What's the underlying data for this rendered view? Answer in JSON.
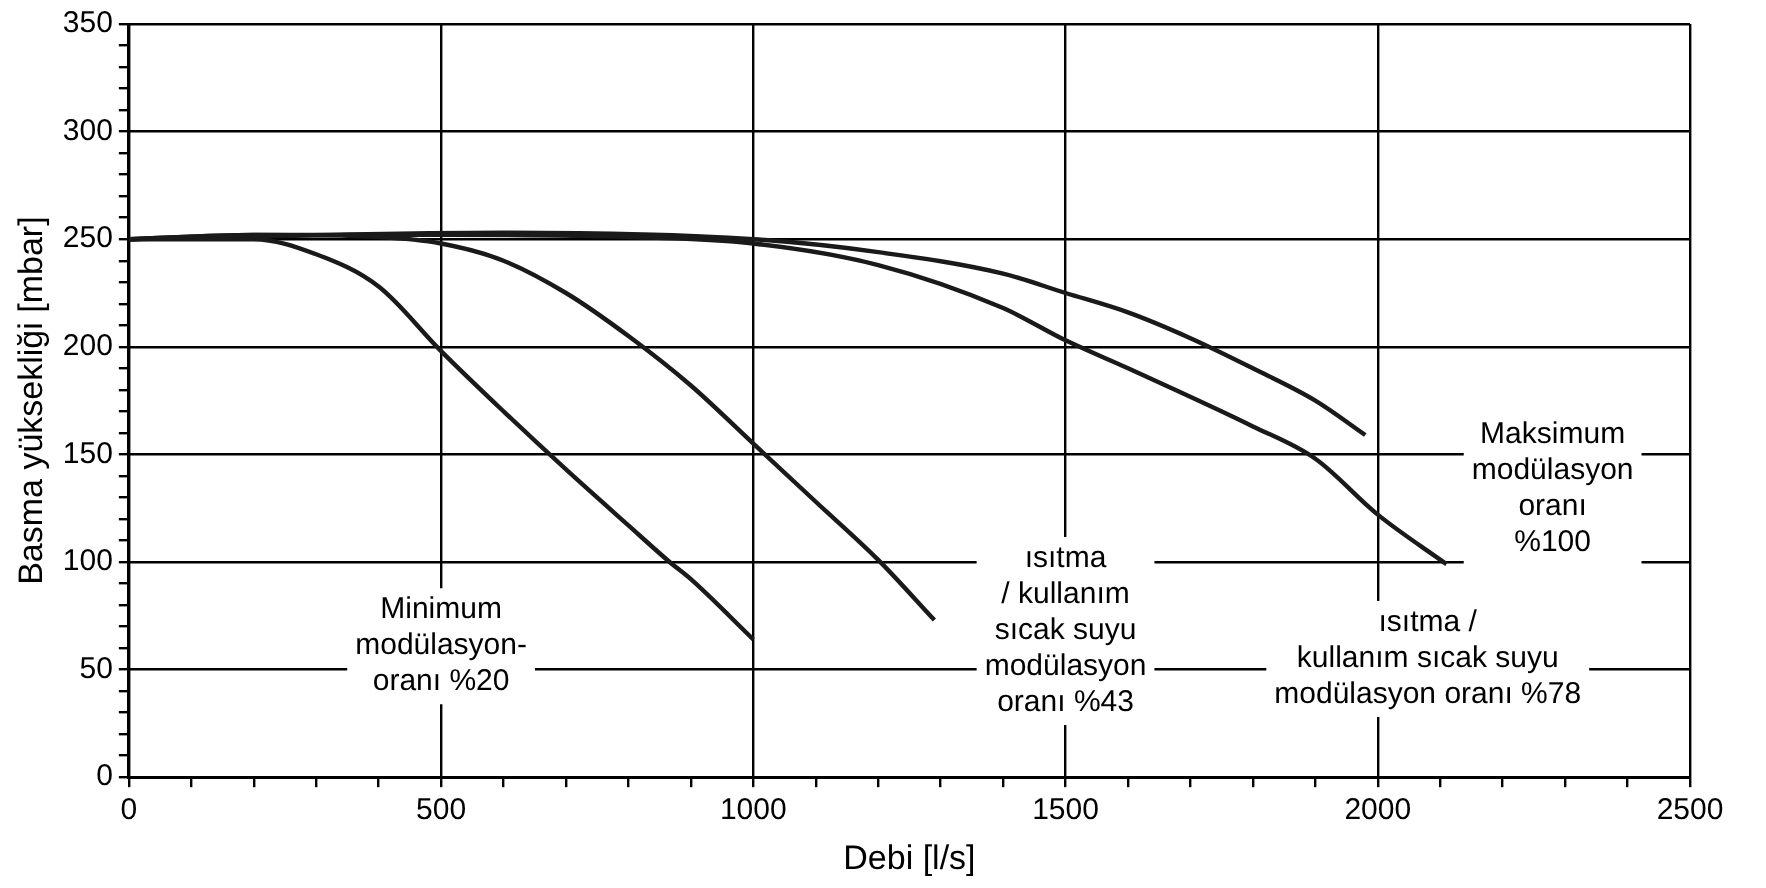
{
  "chart_data": {
    "type": "line",
    "xlabel": "Debi [l/s]",
    "ylabel": "Basma yüksekliği [mbar]",
    "xlim": [
      0,
      2500
    ],
    "xticks": [
      0,
      {
        "value": 100,
        "label": null
      },
      {
        "value": 200,
        "label": null
      },
      {
        "value": 300,
        "label": null
      },
      {
        "value": 400,
        "label": null
      },
      500,
      {
        "value": 600,
        "label": null
      },
      {
        "value": 700,
        "label": null
      },
      {
        "value": 800,
        "label": null
      },
      {
        "value": 900,
        "label": null
      },
      1000,
      {
        "value": 1100,
        "label": null
      },
      {
        "value": 1200,
        "label": null
      },
      {
        "value": 1300,
        "label": null
      },
      {
        "value": 1400,
        "label": null
      },
      1500,
      {
        "value": 1600,
        "label": null
      },
      {
        "value": 1700,
        "label": null
      },
      {
        "value": 1800,
        "label": null
      },
      {
        "value": 1900,
        "label": null
      },
      2000,
      {
        "value": 2100,
        "label": null
      },
      {
        "value": 2200,
        "label": null
      },
      {
        "value": 2300,
        "label": null
      },
      {
        "value": 2400,
        "label": null
      },
      2500
    ],
    "ylim": [
      0,
      350
    ],
    "yticks": [
      0,
      {
        "value": 10,
        "label": null
      },
      {
        "value": 20,
        "label": null
      },
      {
        "value": 30,
        "label": null
      },
      {
        "value": 40,
        "label": null
      },
      50,
      {
        "value": 60,
        "label": null
      },
      {
        "value": 70,
        "label": null
      },
      {
        "value": 80,
        "label": null
      },
      {
        "value": 90,
        "label": null
      },
      100,
      {
        "value": 110,
        "label": null
      },
      {
        "value": 120,
        "label": null
      },
      {
        "value": 130,
        "label": null
      },
      {
        "value": 140,
        "label": null
      },
      150,
      {
        "value": 160,
        "label": null
      },
      {
        "value": 170,
        "label": null
      },
      {
        "value": 180,
        "label": null
      },
      {
        "value": 190,
        "label": null
      },
      200,
      {
        "value": 210,
        "label": null
      },
      {
        "value": 220,
        "label": null
      },
      {
        "value": 230,
        "label": null
      },
      {
        "value": 240,
        "label": null
      },
      250,
      {
        "value": 260,
        "label": null
      },
      {
        "value": 270,
        "label": null
      },
      {
        "value": 280,
        "label": null
      },
      {
        "value": 290,
        "label": null
      },
      300,
      {
        "value": 310,
        "label": null
      },
      {
        "value": 320,
        "label": null
      },
      {
        "value": 330,
        "label": null
      },
      {
        "value": 340,
        "label": null
      },
      350
    ],
    "grid": true,
    "legend": false,
    "marker": "none",
    "line_style": "solid",
    "series": [
      {
        "color": "#1a1a1a",
        "x": [
          0,
          200,
          300,
          400,
          500,
          600,
          700,
          800,
          866,
          900,
          1000
        ],
        "values": [
          250,
          250,
          243,
          228,
          198,
          170,
          143,
          117,
          100,
          92,
          64
        ]
      },
      {
        "color": "#1a1a1a",
        "x": [
          0,
          200,
          400,
          500,
          600,
          700,
          800,
          900,
          1000,
          1100,
          1200,
          1290
        ],
        "values": [
          250,
          252,
          251,
          248,
          240,
          225,
          205,
          182,
          155,
          128,
          101,
          73
        ]
      },
      {
        "color": "#1a1a1a",
        "x": [
          0,
          200,
          500,
          800,
          1000,
          1200,
          1400,
          1500,
          1600,
          1800,
          1900,
          2000,
          2110
        ],
        "values": [
          250,
          252,
          252,
          251,
          248,
          238,
          218,
          203,
          190,
          163,
          148,
          122,
          99
        ]
      },
      {
        "color": "#1a1a1a",
        "x": [
          0,
          600,
          1000,
          1200,
          1400,
          1500,
          1600,
          1700,
          1800,
          1900,
          1980
        ],
        "values": [
          250,
          253,
          250,
          244,
          234,
          225,
          216,
          204,
          190,
          175,
          159
        ]
      }
    ],
    "annotations": [
      "Minimum\nmodülasyon-\noranı %20",
      "ısıtma\n/ kullanım\nsıcak suyu\nmodülasyon\noranı %43",
      "ısıtma /\nkullanım sıcak suyu\nmodülasyon oranı %78",
      "Maksimum\nmodülasyon\noranı\n%100"
    ]
  }
}
